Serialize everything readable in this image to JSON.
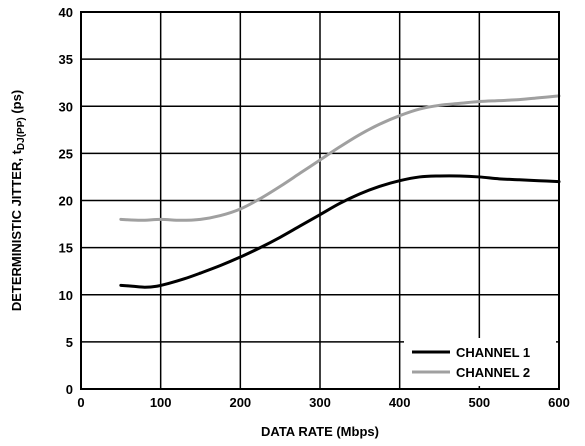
{
  "chart_data": {
    "type": "line",
    "title": "",
    "xlabel": "DATA RATE (Mbps)",
    "ylabel_parts": {
      "main": "DETERMINISTIC JITTER, t",
      "subscript": "DJ(PP)",
      "unit": " (ps)"
    },
    "xlim": [
      0,
      600
    ],
    "ylim": [
      0,
      40
    ],
    "xticks": [
      0,
      100,
      200,
      300,
      400,
      500,
      600
    ],
    "yticks": [
      0,
      5,
      10,
      15,
      20,
      25,
      30,
      35,
      40
    ],
    "grid": true,
    "legend_position": "bottom-right",
    "series": [
      {
        "name": "CHANNEL 1",
        "color": "#000000",
        "x": [
          50,
          65,
          80,
          95,
          110,
          130,
          150,
          175,
          200,
          225,
          250,
          275,
          300,
          325,
          350,
          375,
          400,
          425,
          450,
          475,
          500,
          525,
          550,
          575,
          600
        ],
        "y": [
          11.0,
          10.9,
          10.8,
          10.9,
          11.2,
          11.7,
          12.3,
          13.1,
          14.0,
          15.0,
          16.1,
          17.3,
          18.5,
          19.7,
          20.7,
          21.5,
          22.1,
          22.5,
          22.6,
          22.6,
          22.5,
          22.3,
          22.2,
          22.1,
          22.0
        ]
      },
      {
        "name": "CHANNEL 2",
        "color": "#a0a0a0",
        "x": [
          50,
          75,
          100,
          125,
          150,
          175,
          200,
          225,
          250,
          275,
          300,
          325,
          350,
          375,
          400,
          425,
          450,
          475,
          500,
          525,
          550,
          575,
          600
        ],
        "y": [
          18.0,
          17.9,
          18.0,
          17.9,
          18.0,
          18.4,
          19.1,
          20.2,
          21.5,
          22.9,
          24.3,
          25.7,
          27.0,
          28.1,
          29.0,
          29.7,
          30.1,
          30.3,
          30.5,
          30.6,
          30.7,
          30.9,
          31.1
        ]
      }
    ]
  }
}
